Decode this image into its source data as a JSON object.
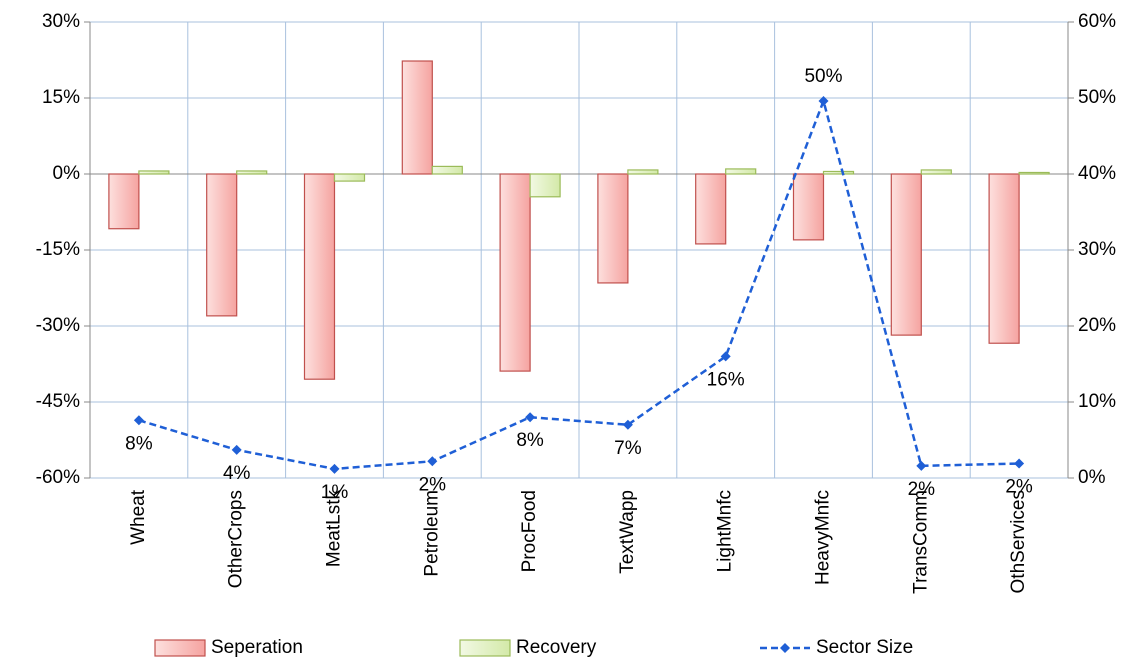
{
  "chart_data": {
    "type": "bar_line",
    "categories": [
      "Wheat",
      "OtherCrops",
      "MeatLstk",
      "Petroleum",
      "ProcFood",
      "TextWapp",
      "LightMnfc",
      "HeavyMnfc",
      "TransComm",
      "OthServices"
    ],
    "series": [
      {
        "name": "Seperation",
        "type": "bar",
        "color": "#c0504d",
        "values": [
          -10.8,
          -28,
          -40.5,
          22.3,
          -38.9,
          -21.5,
          -13.8,
          -13,
          -31.8,
          -33.4
        ]
      },
      {
        "name": "Recovery",
        "type": "bar",
        "color": "#9bbb59",
        "values": [
          0.6,
          0.6,
          -1.4,
          1.5,
          -4.5,
          0.8,
          1.0,
          0.5,
          0.8,
          0.3
        ]
      },
      {
        "name": "Sector Size",
        "type": "line",
        "axis": "y2",
        "color": "#1f5fd6",
        "values": [
          7.6,
          3.7,
          1.2,
          2.2,
          8.0,
          7.0,
          16.0,
          49.6,
          1.6,
          1.9
        ],
        "value_labels": [
          "8%",
          "4%",
          "1%",
          "2%",
          "8%",
          "7%",
          "16%",
          "50%",
          "2%",
          "2%"
        ]
      }
    ],
    "ylim": [
      -60,
      30
    ],
    "yticks": [
      {
        "value": -60,
        "label": "-60%"
      },
      {
        "value": -45,
        "label": "-45%"
      },
      {
        "value": -30,
        "label": "-30%"
      },
      {
        "value": -15,
        "label": "-15%"
      },
      {
        "value": 0,
        "label": "0%"
      },
      {
        "value": 15,
        "label": "15%"
      },
      {
        "value": 30,
        "label": "30%"
      }
    ],
    "y2lim": [
      0,
      60
    ],
    "y2ticks": [
      {
        "value": 0,
        "label": "0%"
      },
      {
        "value": 10,
        "label": "10%"
      },
      {
        "value": 20,
        "label": "20%"
      },
      {
        "value": 30,
        "label": "30%"
      },
      {
        "value": 40,
        "label": "40%"
      },
      {
        "value": 50,
        "label": "50%"
      },
      {
        "value": 60,
        "label": "60%"
      }
    ],
    "grid": true
  }
}
